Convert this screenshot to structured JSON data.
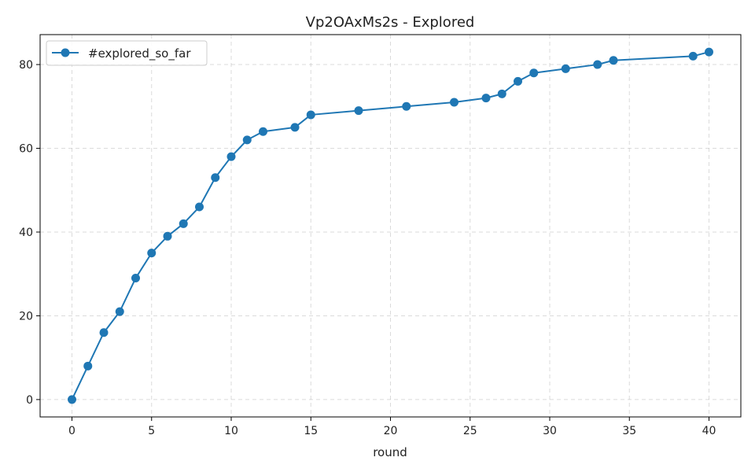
{
  "chart_data": {
    "type": "line",
    "title": "Vp2OAxMs2s - Explored",
    "xlabel": "round",
    "ylabel": "",
    "xlim": [
      -2,
      42
    ],
    "ylim": [
      -4.15,
      87.15
    ],
    "x_ticks": [
      0,
      5,
      10,
      15,
      20,
      25,
      30,
      35,
      40
    ],
    "y_ticks": [
      0,
      20,
      40,
      60,
      80
    ],
    "grid": true,
    "legend_position": "top-left",
    "color": "#1f77b4",
    "series": [
      {
        "name": "#explored_so_far",
        "x": [
          0,
          1,
          2,
          3,
          4,
          5,
          6,
          7,
          8,
          9,
          10,
          11,
          12,
          14,
          15,
          18,
          21,
          24,
          26,
          27,
          28,
          29,
          31,
          33,
          34,
          39,
          40
        ],
        "y": [
          0,
          8,
          16,
          21,
          29,
          35,
          39,
          42,
          46,
          53,
          58,
          62,
          64,
          65,
          68,
          69,
          70,
          71,
          72,
          73,
          76,
          78,
          79,
          80,
          81,
          82,
          83
        ]
      }
    ]
  }
}
